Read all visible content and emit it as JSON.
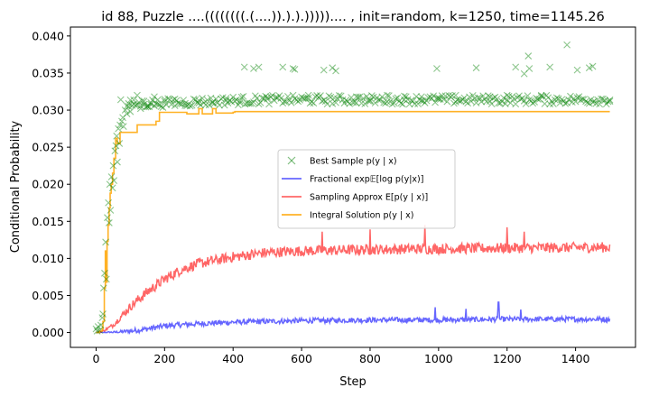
{
  "chart_data": {
    "type": "line",
    "title": "id 88, Puzzle ....((((((((.(....)).).).))))).... , init=random, k=1250, time=1145.26",
    "xlabel": "Step",
    "ylabel": "Conditional Probability",
    "xlim": [
      -75,
      1575
    ],
    "ylim": [
      -0.002,
      0.0412
    ],
    "x_ticks": [
      0,
      200,
      400,
      600,
      800,
      1000,
      1200,
      1400
    ],
    "x_tick_labels": [
      "0",
      "200",
      "400",
      "600",
      "800",
      "1000",
      "1200",
      "1400"
    ],
    "y_ticks": [
      0.0,
      0.005,
      0.01,
      0.015,
      0.02,
      0.025,
      0.03,
      0.035,
      0.04
    ],
    "y_tick_labels": [
      "0.000",
      "0.005",
      "0.010",
      "0.015",
      "0.020",
      "0.025",
      "0.030",
      "0.035",
      "0.040"
    ],
    "grid": false,
    "legend_position": "center",
    "series": [
      {
        "name": "Best Sample p(y | x)",
        "kind": "scatter",
        "marker": "x",
        "color": "#008000",
        "opacity": 0.45,
        "points": [
          [
            0,
            0.0005
          ],
          [
            3,
            0.0002
          ],
          [
            6,
            0.0008
          ],
          [
            10,
            0.0003
          ],
          [
            14,
            0.001
          ],
          [
            18,
            0.002
          ],
          [
            20,
            0.0025
          ],
          [
            22,
            0.006
          ],
          [
            25,
            0.008
          ],
          [
            28,
            0.0122
          ],
          [
            30,
            0.0072
          ],
          [
            33,
            0.0155
          ],
          [
            36,
            0.0175
          ],
          [
            38,
            0.0148
          ],
          [
            40,
            0.02
          ],
          [
            42,
            0.0165
          ],
          [
            45,
            0.021
          ],
          [
            48,
            0.0195
          ],
          [
            50,
            0.0225
          ],
          [
            52,
            0.0205
          ],
          [
            55,
            0.0245
          ],
          [
            58,
            0.0252
          ],
          [
            60,
            0.0265
          ],
          [
            62,
            0.023
          ],
          [
            65,
            0.0275
          ],
          [
            68,
            0.0255
          ],
          [
            70,
            0.028
          ],
          [
            72,
            0.0314
          ],
          [
            75,
            0.0285
          ],
          [
            78,
            0.029
          ],
          [
            80,
            0.0278
          ],
          [
            85,
            0.03
          ],
          [
            90,
            0.0295
          ],
          [
            95,
            0.0305
          ],
          [
            100,
            0.0298
          ],
          [
            110,
            0.0308
          ],
          [
            120,
            0.032
          ],
          [
            130,
            0.0302
          ],
          [
            140,
            0.0312
          ],
          [
            150,
            0.0305
          ],
          [
            160,
            0.031
          ],
          [
            170,
            0.0318
          ],
          [
            180,
            0.0308
          ],
          [
            200,
            0.0312
          ],
          [
            230,
            0.0315
          ],
          [
            260,
            0.0309
          ],
          [
            300,
            0.0313
          ],
          [
            340,
            0.0311
          ],
          [
            380,
            0.0316
          ],
          [
            420,
            0.031
          ],
          [
            433,
            0.0358
          ],
          [
            460,
            0.0356
          ],
          [
            475,
            0.0358
          ],
          [
            500,
            0.0315
          ],
          [
            545,
            0.0358
          ],
          [
            575,
            0.0356
          ],
          [
            580,
            0.0355
          ],
          [
            620,
            0.032
          ],
          [
            665,
            0.0354
          ],
          [
            690,
            0.0357
          ],
          [
            700,
            0.0353
          ],
          [
            760,
            0.0318
          ],
          [
            800,
            0.0312
          ],
          [
            850,
            0.032
          ],
          [
            900,
            0.0314
          ],
          [
            950,
            0.0318
          ],
          [
            995,
            0.0356
          ],
          [
            1000,
            0.0315
          ],
          [
            1050,
            0.032
          ],
          [
            1110,
            0.0357
          ],
          [
            1150,
            0.0318
          ],
          [
            1200,
            0.032
          ],
          [
            1225,
            0.0358
          ],
          [
            1250,
            0.0349
          ],
          [
            1262,
            0.0373
          ],
          [
            1265,
            0.0356
          ],
          [
            1300,
            0.032
          ],
          [
            1325,
            0.0358
          ],
          [
            1375,
            0.0388
          ],
          [
            1405,
            0.0354
          ],
          [
            1440,
            0.0357
          ],
          [
            1450,
            0.0359
          ],
          [
            1500,
            0.0312
          ]
        ]
      },
      {
        "name": "Fractional exp𝔼[log p(y|x)]",
        "kind": "line",
        "color": "#0000ff",
        "opacity": 0.6,
        "shape": [
          [
            0,
            0.0
          ],
          [
            60,
            5e-05
          ],
          [
            100,
            0.0002
          ],
          [
            150,
            0.0005
          ],
          [
            200,
            0.0009
          ],
          [
            300,
            0.0012
          ],
          [
            400,
            0.0014
          ],
          [
            600,
            0.0016
          ],
          [
            800,
            0.0017
          ],
          [
            1000,
            0.0017
          ],
          [
            1200,
            0.0018
          ],
          [
            1500,
            0.0018
          ]
        ],
        "noise": 0.0007,
        "spikes": [
          [
            1175,
            0.0041
          ],
          [
            1080,
            0.0032
          ],
          [
            990,
            0.0034
          ],
          [
            1240,
            0.0031
          ]
        ]
      },
      {
        "name": "Sampling Approx E[p(y | x)]",
        "kind": "line",
        "color": "#ff0000",
        "opacity": 0.6,
        "shape": [
          [
            0,
            0.0
          ],
          [
            20,
            0.0002
          ],
          [
            50,
            0.001
          ],
          [
            100,
            0.0035
          ],
          [
            150,
            0.0055
          ],
          [
            200,
            0.0072
          ],
          [
            250,
            0.0085
          ],
          [
            300,
            0.0093
          ],
          [
            400,
            0.0102
          ],
          [
            500,
            0.0108
          ],
          [
            600,
            0.011
          ],
          [
            800,
            0.0112
          ],
          [
            1000,
            0.0113
          ],
          [
            1200,
            0.0114
          ],
          [
            1500,
            0.0115
          ]
        ],
        "noise": 0.0014,
        "spikes": [
          [
            960,
            0.0145
          ],
          [
            1200,
            0.0142
          ],
          [
            800,
            0.0139
          ],
          [
            660,
            0.0136
          ],
          [
            1250,
            0.0136
          ]
        ]
      },
      {
        "name": "Integral Solution p(y | x)",
        "kind": "step",
        "color": "#ffa500",
        "opacity": 0.85,
        "points": [
          [
            0,
            0.0
          ],
          [
            10,
            0.0002
          ],
          [
            18,
            0.0005
          ],
          [
            20,
            0.0015
          ],
          [
            24,
            0.006
          ],
          [
            27,
            0.011
          ],
          [
            29,
            0.0068
          ],
          [
            32,
            0.0123
          ],
          [
            35,
            0.0145
          ],
          [
            38,
            0.0168
          ],
          [
            41,
            0.0188
          ],
          [
            44,
            0.02
          ],
          [
            48,
            0.0215
          ],
          [
            52,
            0.0235
          ],
          [
            57,
            0.0262
          ],
          [
            62,
            0.0255
          ],
          [
            70,
            0.027
          ],
          [
            110,
            0.027
          ],
          [
            120,
            0.028
          ],
          [
            175,
            0.0285
          ],
          [
            185,
            0.0297
          ],
          [
            260,
            0.0297
          ],
          [
            265,
            0.0295
          ],
          [
            290,
            0.0295
          ],
          [
            300,
            0.0302
          ],
          [
            310,
            0.0295
          ],
          [
            340,
            0.0302
          ],
          [
            350,
            0.0296
          ],
          [
            400,
            0.0297
          ],
          [
            405,
            0.0298
          ],
          [
            1500,
            0.0298
          ]
        ]
      }
    ]
  },
  "legend": {
    "items": [
      {
        "label": "Best Sample p(y | x)"
      },
      {
        "label": "Fractional exp𝔼[log p(y|x)]"
      },
      {
        "label": "Sampling Approx E[p(y | x)]"
      },
      {
        "label": "Integral Solution p(y | x)"
      }
    ]
  }
}
